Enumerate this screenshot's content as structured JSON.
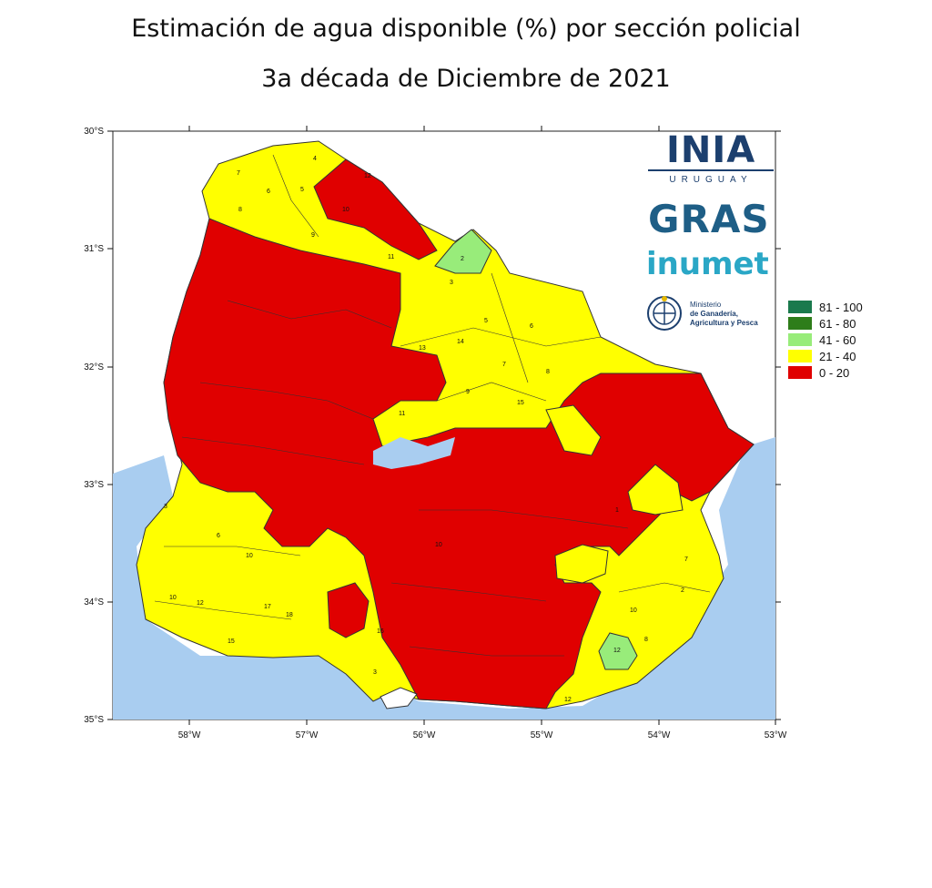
{
  "title": {
    "line1": "Estimación de agua disponible (%) por sección policial",
    "line2": "3a década de Diciembre de 2021"
  },
  "axes": {
    "lat_labels": [
      "30°S",
      "31°S",
      "32°S",
      "33°S",
      "34°S",
      "35°S"
    ],
    "lon_labels": [
      "58°W",
      "57°W",
      "56°W",
      "55°W",
      "54°W",
      "53°W"
    ]
  },
  "logos": {
    "inia": "INIA",
    "inia_sub": "URUGUAY",
    "gras": "GRAS",
    "inumet": "inumet",
    "ministerio_line1": "Ministerio",
    "ministerio_line2": "de Ganadería,",
    "ministerio_line3": "Agricultura y Pesca"
  },
  "legend": {
    "items": [
      {
        "label": "81 - 100",
        "color": "#1b7a4d"
      },
      {
        "label": "61 - 80",
        "color": "#2e7d1a"
      },
      {
        "label": "41 - 60",
        "color": "#98ec7a"
      },
      {
        "label": "21 - 40",
        "color": "#ffff00"
      },
      {
        "label": "0 - 20",
        "color": "#e00000"
      }
    ]
  },
  "colors": {
    "water": "#a9cdf0",
    "high": "#ffff00",
    "low": "#e00000",
    "mid": "#98ec7a",
    "border": "#333333"
  },
  "region_numbers": [
    "4",
    "7",
    "6",
    "5",
    "8",
    "12",
    "10",
    "9",
    "11",
    "2",
    "3",
    "13",
    "14",
    "15",
    "16",
    "17",
    "18",
    "1"
  ]
}
